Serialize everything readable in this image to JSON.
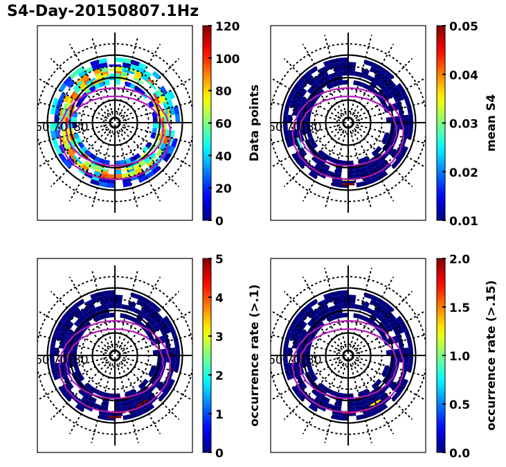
{
  "figure": {
    "title": "S4-Day-20150807.1Hz"
  },
  "chart_data": [
    {
      "type": "heatmap",
      "projection": "polar (magnetic latitude / MLT)",
      "panel": "top-left",
      "colorbar": {
        "label": "Data points",
        "range": [
          0,
          120
        ],
        "ticks": [
          "0",
          "20",
          "40",
          "60",
          "80",
          "100",
          "120"
        ],
        "tick_values": [
          0,
          20,
          40,
          60,
          80,
          100,
          120
        ],
        "colormap": "jet"
      },
      "lat_labels": [
        "60",
        "70",
        "80"
      ],
      "lat_circles_solid": [
        60,
        70,
        80
      ],
      "lat_circles_dotted": [
        55,
        65,
        75,
        85
      ],
      "oval_boundaries": "two magenta auroral oval boundary curves",
      "description": "Annular band of bins between ~62 and ~72 deg latitude; values mostly 10-70 with some bins near 90-100 (orange) on the dawn/dusk flanks",
      "bins": [
        {
          "mlat": 68,
          "mlt": 12.0,
          "value": 50
        },
        {
          "mlat": 66,
          "mlt": 12.0,
          "value": 70
        },
        {
          "mlat": 64,
          "mlt": 12.0,
          "value": 15
        },
        {
          "mlat": 68,
          "mlt": 13.0,
          "value": 75
        },
        {
          "mlat": 68,
          "mlt": 14.0,
          "value": 40
        },
        {
          "mlat": 66,
          "mlt": 15.0,
          "value": 45
        },
        {
          "mlat": 68,
          "mlt": 16.0,
          "value": 90
        },
        {
          "mlat": 66,
          "mlt": 17.0,
          "value": 60
        },
        {
          "mlat": 68,
          "mlt": 18.0,
          "value": 100
        },
        {
          "mlat": 66,
          "mlt": 19.0,
          "value": 70
        },
        {
          "mlat": 68,
          "mlt": 20.0,
          "value": 50
        },
        {
          "mlat": 66,
          "mlt": 21.0,
          "value": 40
        },
        {
          "mlat": 68,
          "mlt": 23.0,
          "value": 55
        },
        {
          "mlat": 68,
          "mlt": 1.0,
          "value": 75
        },
        {
          "mlat": 66,
          "mlt": 3.0,
          "value": 60
        },
        {
          "mlat": 68,
          "mlt": 5.0,
          "value": 85
        },
        {
          "mlat": 68,
          "mlt": 6.0,
          "value": 95
        },
        {
          "mlat": 66,
          "mlt": 7.0,
          "value": 40
        },
        {
          "mlat": 68,
          "mlt": 8.0,
          "value": 100
        },
        {
          "mlat": 66,
          "mlt": 9.0,
          "value": 50
        },
        {
          "mlat": 68,
          "mlt": 10.0,
          "value": 60
        },
        {
          "mlat": 66,
          "mlt": 11.0,
          "value": 35
        }
      ]
    },
    {
      "type": "heatmap",
      "projection": "polar (magnetic latitude / MLT)",
      "panel": "top-right",
      "colorbar": {
        "label": "mean S4",
        "range": [
          0.01,
          0.05
        ],
        "ticks": [
          "0.01",
          "0.02",
          "0.03",
          "0.04",
          "0.05"
        ],
        "tick_values": [
          0.01,
          0.02,
          0.03,
          0.04,
          0.05
        ],
        "colormap": "jet"
      },
      "lat_labels": [
        "60",
        "70",
        "80"
      ],
      "description": "Nearly all bins at the minimum (~0.01, dark blue); a few high bins near noon (~0.05 red/dark red), one ~0.035 (green) near noon, one ~0.028 (cyan) on the dusk side",
      "bins": [
        {
          "mlat": 62,
          "mlt": 0.0,
          "value": 0.05
        },
        {
          "mlat": 64,
          "mlt": 0.0,
          "value": 0.034
        },
        {
          "mlat": 64,
          "mlt": 1.3,
          "value": 0.05
        },
        {
          "mlat": 66,
          "mlt": 19.5,
          "value": 0.028
        }
      ],
      "background_value": 0.01
    },
    {
      "type": "heatmap",
      "projection": "polar (magnetic latitude / MLT)",
      "panel": "bottom-left",
      "colorbar": {
        "label": "occurrence rate (>.1)",
        "range": [
          0,
          5
        ],
        "ticks": [
          "0",
          "1",
          "2",
          "3",
          "4",
          "5"
        ],
        "tick_values": [
          0,
          1,
          2,
          3,
          4,
          5
        ],
        "colormap": "jet"
      },
      "lat_labels": [
        "60",
        "70",
        "80"
      ],
      "description": "Nearly all bins at 0 (dark blue); a few bins near noon at ~5 (dark red)",
      "bins": [
        {
          "mlat": 62,
          "mlt": 0.0,
          "value": 5
        },
        {
          "mlat": 64,
          "mlt": 0.3,
          "value": 5
        },
        {
          "mlat": 64,
          "mlt": 1.3,
          "value": 5
        },
        {
          "mlat": 65,
          "mlt": 2.0,
          "value": 5
        }
      ],
      "background_value": 0
    },
    {
      "type": "heatmap",
      "projection": "polar (magnetic latitude / MLT)",
      "panel": "bottom-right",
      "colorbar": {
        "label": "occurrence rate (>.15)",
        "range": [
          0.0,
          2.0
        ],
        "ticks": [
          "0.0",
          "0.5",
          "1.0",
          "1.5",
          "2.0"
        ],
        "tick_values": [
          0.0,
          0.5,
          1.0,
          1.5,
          2.0
        ],
        "colormap": "jet"
      },
      "lat_labels": [
        "60",
        "70",
        "80"
      ],
      "description": "Nearly all bins at 0 (dark blue); a few bins near noon: ~1.8 (orange-red), ~2.0 (dark red), ~1.3 (yellow-green)",
      "bins": [
        {
          "mlat": 64,
          "mlt": 0.0,
          "value": 1.8
        },
        {
          "mlat": 64,
          "mlt": 1.2,
          "value": 2.0
        },
        {
          "mlat": 65,
          "mlt": 2.0,
          "value": 1.3
        }
      ],
      "background_value": 0.0
    }
  ]
}
